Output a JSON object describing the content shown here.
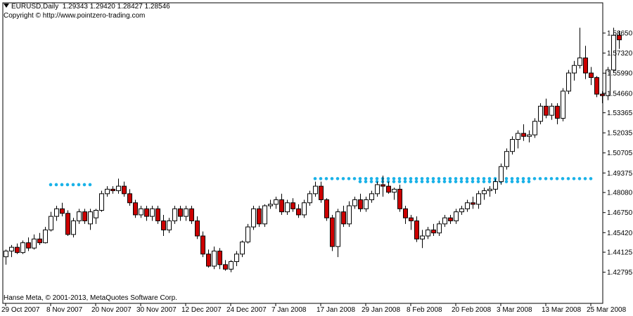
{
  "header": {
    "symbol": "EURUSD,Daily",
    "ohlc": "1.29343 1.29420 1.28427 1.28546",
    "copyright": "Copyright © http://www.pointzero-trading.com"
  },
  "footer": {
    "text": "Hanse Meta, © 2001-2013, MetaQuotes Software Corp."
  },
  "colors": {
    "bull_body": "#ffffff",
    "bear_body": "#cc0000",
    "wick": "#000000",
    "resistance_dots": "#1ab2e8",
    "support_dots": "#f06040",
    "frame": "#000000"
  },
  "chart_data": {
    "type": "candlestick",
    "ylim": [
      1.4185,
      1.5935
    ],
    "price_ticks": [
      "1.58650",
      "1.57320",
      "1.55990",
      "1.54660",
      "1.53365",
      "1.52035",
      "1.50705",
      "1.49375",
      "1.48080",
      "1.46750",
      "1.45420",
      "1.44125",
      "1.42795"
    ],
    "date_ticks": [
      {
        "label": "29 Oct 2007",
        "bar": 0
      },
      {
        "label": "8 Nov 2007",
        "bar": 8
      },
      {
        "label": "20 Nov 2007",
        "bar": 16
      },
      {
        "label": "30 Nov 2007",
        "bar": 24
      },
      {
        "label": "12 Dec 2007",
        "bar": 32
      },
      {
        "label": "24 Dec 2007",
        "bar": 40
      },
      {
        "label": "7 Jan 2008",
        "bar": 48
      },
      {
        "label": "17 Jan 2008",
        "bar": 56
      },
      {
        "label": "29 Jan 2008",
        "bar": 64
      },
      {
        "label": "8 Feb 2008",
        "bar": 72
      },
      {
        "label": "20 Feb 2008",
        "bar": 80
      },
      {
        "label": "3 Mar 2008",
        "bar": 88
      },
      {
        "label": "13 Mar 2008",
        "bar": 96
      },
      {
        "label": "25 Mar 2008",
        "bar": 104
      }
    ],
    "candles": [
      [
        1.4382,
        1.443,
        1.433,
        1.442
      ],
      [
        1.442,
        1.446,
        1.438,
        1.4445
      ],
      [
        1.4445,
        1.447,
        1.44,
        1.441
      ],
      [
        1.441,
        1.449,
        1.44,
        1.4475
      ],
      [
        1.4475,
        1.451,
        1.442,
        1.444
      ],
      [
        1.444,
        1.453,
        1.443,
        1.45
      ],
      [
        1.45,
        1.454,
        1.446,
        1.4475
      ],
      [
        1.4475,
        1.458,
        1.447,
        1.456
      ],
      [
        1.456,
        1.468,
        1.455,
        1.465
      ],
      [
        1.465,
        1.472,
        1.462,
        1.47
      ],
      [
        1.47,
        1.474,
        1.465,
        1.467
      ],
      [
        1.467,
        1.469,
        1.452,
        1.453
      ],
      [
        1.453,
        1.464,
        1.451,
        1.462
      ],
      [
        1.462,
        1.47,
        1.46,
        1.468
      ],
      [
        1.468,
        1.47,
        1.46,
        1.462
      ],
      [
        1.46,
        1.47,
        1.456,
        1.468
      ],
      [
        1.464,
        1.47,
        1.46,
        1.469
      ],
      [
        1.469,
        1.482,
        1.468,
        1.48
      ],
      [
        1.48,
        1.485,
        1.478,
        1.483
      ],
      [
        1.483,
        1.485,
        1.48,
        1.482
      ],
      [
        1.482,
        1.49,
        1.48,
        1.485
      ],
      [
        1.485,
        1.488,
        1.478,
        1.48
      ],
      [
        1.48,
        1.483,
        1.472,
        1.474
      ],
      [
        1.474,
        1.476,
        1.464,
        1.466
      ],
      [
        1.466,
        1.472,
        1.464,
        1.47
      ],
      [
        1.47,
        1.472,
        1.462,
        1.465
      ],
      [
        1.465,
        1.472,
        1.462,
        1.47
      ],
      [
        1.47,
        1.472,
        1.46,
        1.462
      ],
      [
        1.462,
        1.466,
        1.452,
        1.456
      ],
      [
        1.456,
        1.464,
        1.454,
        1.462
      ],
      [
        1.462,
        1.472,
        1.46,
        1.47
      ],
      [
        1.47,
        1.472,
        1.462,
        1.465
      ],
      [
        1.465,
        1.472,
        1.462,
        1.47
      ],
      [
        1.47,
        1.472,
        1.46,
        1.462
      ],
      [
        1.462,
        1.465,
        1.45,
        1.452
      ],
      [
        1.452,
        1.455,
        1.438,
        1.44
      ],
      [
        1.44,
        1.443,
        1.431,
        1.432
      ],
      [
        1.432,
        1.445,
        1.43,
        1.442
      ],
      [
        1.442,
        1.444,
        1.43,
        1.433
      ],
      [
        1.433,
        1.436,
        1.429,
        1.43
      ],
      [
        1.43,
        1.436,
        1.428,
        1.435
      ],
      [
        1.435,
        1.442,
        1.432,
        1.44
      ],
      [
        1.44,
        1.449,
        1.438,
        1.448
      ],
      [
        1.448,
        1.46,
        1.447,
        1.458
      ],
      [
        1.458,
        1.472,
        1.456,
        1.47
      ],
      [
        1.47,
        1.472,
        1.458,
        1.46
      ],
      [
        1.46,
        1.473,
        1.458,
        1.472
      ],
      [
        1.472,
        1.476,
        1.47,
        1.473
      ],
      [
        1.473,
        1.478,
        1.47,
        1.476
      ],
      [
        1.476,
        1.48,
        1.466,
        1.468
      ],
      [
        1.468,
        1.476,
        1.466,
        1.474
      ],
      [
        1.474,
        1.477,
        1.468,
        1.47
      ],
      [
        1.47,
        1.473,
        1.464,
        1.466
      ],
      [
        1.466,
        1.476,
        1.464,
        1.474
      ],
      [
        1.474,
        1.482,
        1.472,
        1.48
      ],
      [
        1.48,
        1.488,
        1.478,
        1.485
      ],
      [
        1.485,
        1.488,
        1.474,
        1.476
      ],
      [
        1.476,
        1.477,
        1.462,
        1.464
      ],
      [
        1.464,
        1.466,
        1.442,
        1.445
      ],
      [
        1.445,
        1.47,
        1.438,
        1.468
      ],
      [
        1.468,
        1.472,
        1.458,
        1.46
      ],
      [
        1.46,
        1.475,
        1.458,
        1.472
      ],
      [
        1.472,
        1.478,
        1.47,
        1.476
      ],
      [
        1.476,
        1.48,
        1.468,
        1.47
      ],
      [
        1.47,
        1.478,
        1.468,
        1.476
      ],
      [
        1.476,
        1.482,
        1.474,
        1.48
      ],
      [
        1.48,
        1.488,
        1.478,
        1.486
      ],
      [
        1.486,
        1.492,
        1.478,
        1.485
      ],
      [
        1.485,
        1.488,
        1.48,
        1.481
      ],
      [
        1.481,
        1.484,
        1.476,
        1.483
      ],
      [
        1.483,
        1.486,
        1.468,
        1.47
      ],
      [
        1.47,
        1.472,
        1.46,
        1.464
      ],
      [
        1.464,
        1.466,
        1.456,
        1.462
      ],
      [
        1.462,
        1.465,
        1.448,
        1.45
      ],
      [
        1.45,
        1.456,
        1.444,
        1.452
      ],
      [
        1.452,
        1.458,
        1.45,
        1.456
      ],
      [
        1.456,
        1.46,
        1.452,
        1.454
      ],
      [
        1.454,
        1.462,
        1.452,
        1.46
      ],
      [
        1.46,
        1.466,
        1.458,
        1.464
      ],
      [
        1.464,
        1.466,
        1.46,
        1.462
      ],
      [
        1.462,
        1.47,
        1.46,
        1.468
      ],
      [
        1.468,
        1.472,
        1.466,
        1.47
      ],
      [
        1.47,
        1.476,
        1.468,
        1.474
      ],
      [
        1.474,
        1.478,
        1.47,
        1.473
      ],
      [
        1.473,
        1.482,
        1.47,
        1.48
      ],
      [
        1.48,
        1.484,
        1.476,
        1.482
      ],
      [
        1.482,
        1.485,
        1.478,
        1.483
      ],
      [
        1.483,
        1.49,
        1.48,
        1.488
      ],
      [
        1.488,
        1.5,
        1.486,
        1.498
      ],
      [
        1.498,
        1.51,
        1.496,
        1.508
      ],
      [
        1.508,
        1.518,
        1.506,
        1.516
      ],
      [
        1.516,
        1.522,
        1.51,
        1.52
      ],
      [
        1.52,
        1.526,
        1.515,
        1.518
      ],
      [
        1.518,
        1.522,
        1.514,
        1.519
      ],
      [
        1.519,
        1.53,
        1.517,
        1.528
      ],
      [
        1.528,
        1.54,
        1.526,
        1.538
      ],
      [
        1.538,
        1.543,
        1.53,
        1.532
      ],
      [
        1.532,
        1.54,
        1.529,
        1.538
      ],
      [
        1.538,
        1.54,
        1.526,
        1.53
      ],
      [
        1.53,
        1.55,
        1.528,
        1.548
      ],
      [
        1.548,
        1.562,
        1.546,
        1.56
      ],
      [
        1.56,
        1.568,
        1.555,
        1.565
      ],
      [
        1.565,
        1.59,
        1.563,
        1.57
      ],
      [
        1.57,
        1.578,
        1.556,
        1.56
      ],
      [
        1.56,
        1.564,
        1.552,
        1.557
      ],
      [
        1.557,
        1.558,
        1.544,
        1.546
      ],
      [
        1.546,
        1.548,
        1.54,
        1.545
      ],
      [
        1.545,
        1.564,
        1.542,
        1.562
      ],
      [
        1.562,
        1.59,
        1.56,
        1.585
      ],
      [
        1.585,
        1.588,
        1.576,
        1.582
      ]
    ],
    "levels": [
      {
        "kind": "resistance",
        "price": 1.49,
        "from": 55,
        "to": 104
      },
      {
        "kind": "resistance",
        "price": 1.488,
        "from": 63,
        "to": 93
      },
      {
        "kind": "resistance",
        "price": 1.486,
        "from": 8,
        "to": 15
      }
    ]
  }
}
